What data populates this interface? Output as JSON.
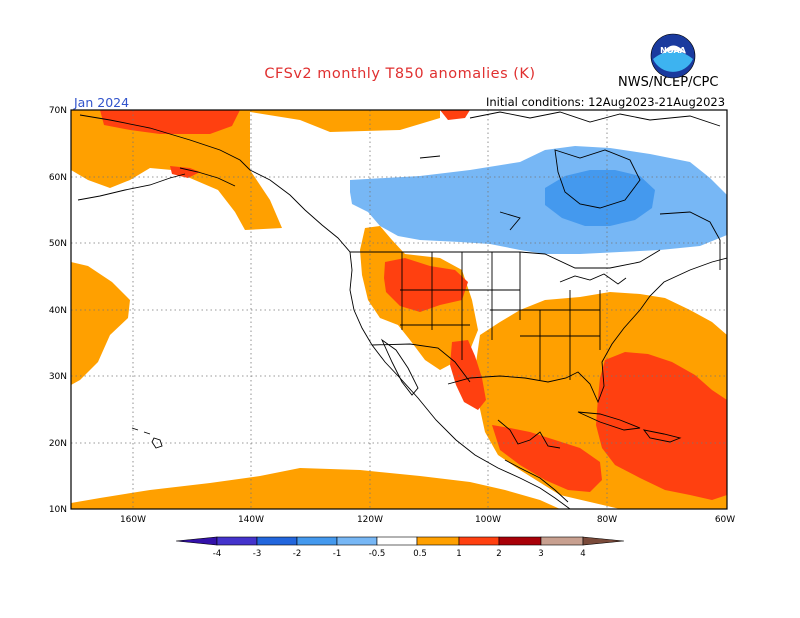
{
  "header": {
    "title": "CFSv2 monthly T850 anomalies (K)",
    "month": "Jan 2024",
    "initial_conditions": "Initial conditions: 12Aug2023-21Aug2023",
    "agency": "NWS/NCEP/CPC",
    "logo_text": "NOAA"
  },
  "map": {
    "lat_labels": [
      "70N",
      "60N",
      "50N",
      "40N",
      "30N",
      "20N",
      "10N"
    ],
    "lon_labels": [
      "160W",
      "140W",
      "120W",
      "100W",
      "80W",
      "60W"
    ]
  },
  "legend": {
    "tick_labels": [
      "-4",
      "-3",
      "-2",
      "-1",
      "-0.5",
      "0.5",
      "1",
      "2",
      "3",
      "4"
    ],
    "colors": {
      "lt_m4": "#3311aa",
      "m4_m3": "#4433cc",
      "m3_m2": "#2266dd",
      "m2_m1": "#4499ee",
      "m1_m05": "#77b7f5",
      "neutral": "#ffffff",
      "p05_p1": "#ffa000",
      "p1_p2": "#ff4010",
      "p2_p3": "#a80008",
      "p3_p4": "#c8a090",
      "gt_p4": "#7a4a3a"
    }
  }
}
